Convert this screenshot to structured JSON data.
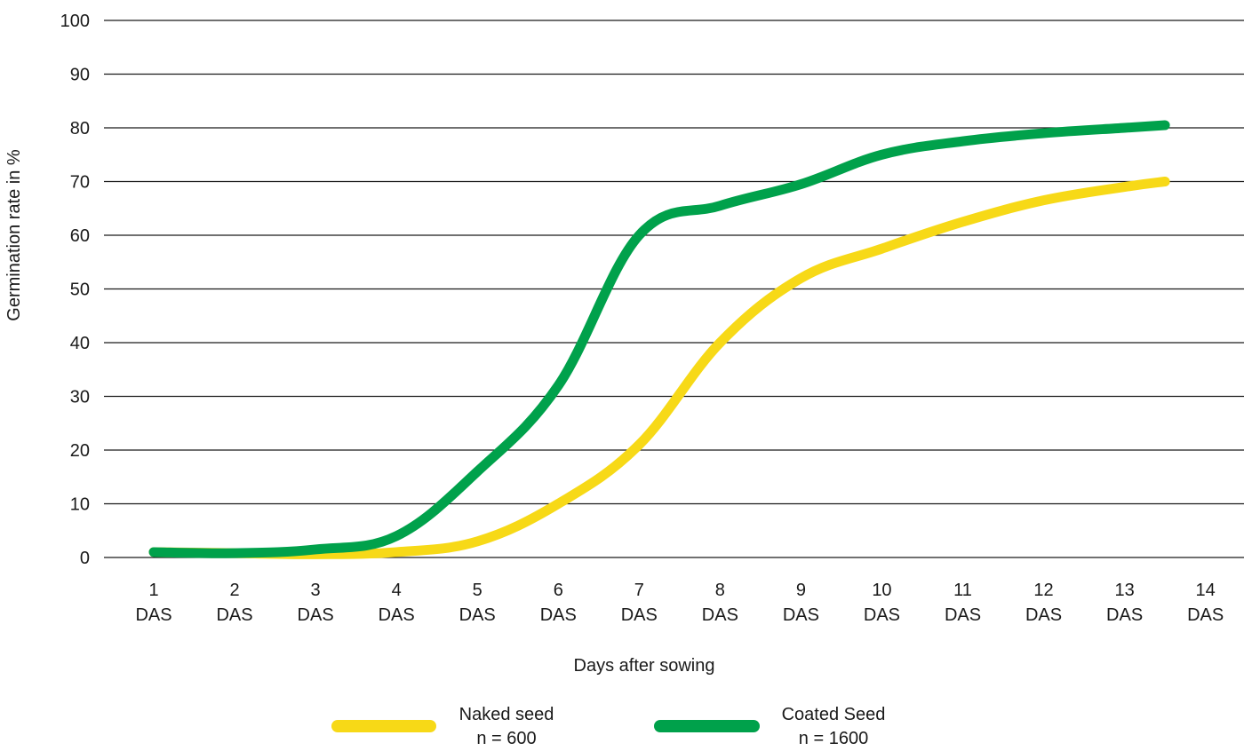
{
  "chart_data": {
    "type": "line",
    "title": "",
    "xlabel": "Days after sowing",
    "ylabel": "Germination rate in %",
    "ylim": [
      0,
      100
    ],
    "yticks": [
      0,
      10,
      20,
      30,
      40,
      50,
      60,
      70,
      80,
      90,
      100
    ],
    "categories": [
      {
        "num": "1",
        "unit": "DAS"
      },
      {
        "num": "2",
        "unit": "DAS"
      },
      {
        "num": "3",
        "unit": "DAS"
      },
      {
        "num": "4",
        "unit": "DAS"
      },
      {
        "num": "5",
        "unit": "DAS"
      },
      {
        "num": "6",
        "unit": "DAS"
      },
      {
        "num": "7",
        "unit": "DAS"
      },
      {
        "num": "8",
        "unit": "DAS"
      },
      {
        "num": "9",
        "unit": "DAS"
      },
      {
        "num": "10",
        "unit": "DAS"
      },
      {
        "num": "11",
        "unit": "DAS"
      },
      {
        "num": "12",
        "unit": "DAS"
      },
      {
        "num": "13",
        "unit": "DAS"
      },
      {
        "num": "14",
        "unit": "DAS"
      }
    ],
    "grid": "horizontal",
    "legend_position": "bottom",
    "series": [
      {
        "name": "Naked seed",
        "sublabel": "n = 600",
        "color": "#F7D917",
        "x": [
          1,
          2,
          3,
          4,
          5,
          6,
          7,
          8,
          9,
          10,
          11,
          12,
          13,
          13.5
        ],
        "values": [
          1,
          0.8,
          0.6,
          1,
          3,
          10,
          21,
          40,
          52,
          57.5,
          62.5,
          66.5,
          69,
          70
        ]
      },
      {
        "name": "Coated Seed",
        "sublabel": "n = 1600",
        "color": "#00A14B",
        "x": [
          1,
          2,
          3,
          4,
          5,
          6,
          7,
          8,
          9,
          10,
          11,
          12,
          13,
          13.5
        ],
        "values": [
          1,
          0.8,
          1.5,
          4,
          16,
          32,
          60,
          65.5,
          69.5,
          75,
          77.5,
          79,
          80,
          80.5
        ]
      }
    ]
  }
}
